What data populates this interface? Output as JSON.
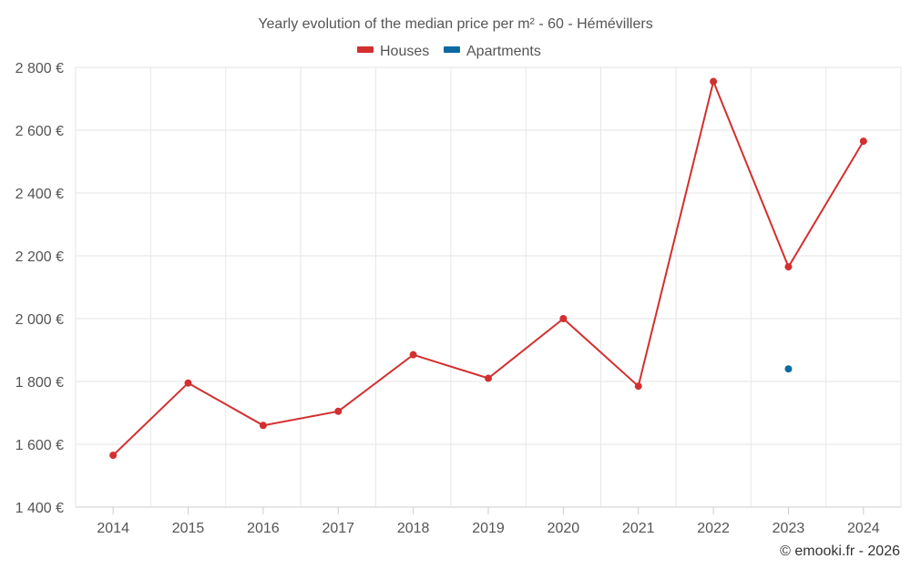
{
  "chart_data": {
    "type": "line",
    "title": "Yearly evolution of the median price per m² - 60 - Hémévillers",
    "categories": [
      "2014",
      "2015",
      "2016",
      "2017",
      "2018",
      "2019",
      "2020",
      "2021",
      "2022",
      "2023",
      "2024"
    ],
    "y_ticks": [
      "1 400 €",
      "1 600 €",
      "1 800 €",
      "2 000 €",
      "2 200 €",
      "2 400 €",
      "2 600 €",
      "2 800 €"
    ],
    "ylim": [
      1400,
      2800
    ],
    "grid": true,
    "legend_position": "top-center",
    "series": [
      {
        "name": "Houses",
        "color": "#d32f2f",
        "values": [
          1565,
          1795,
          1660,
          1705,
          1885,
          1810,
          2000,
          1785,
          2755,
          2165,
          2565
        ]
      },
      {
        "name": "Apartments",
        "color": "#0b6aa2",
        "values": [
          null,
          null,
          null,
          null,
          null,
          null,
          null,
          null,
          null,
          1840,
          null
        ]
      }
    ],
    "credit": "© emooki.fr - 2026"
  }
}
